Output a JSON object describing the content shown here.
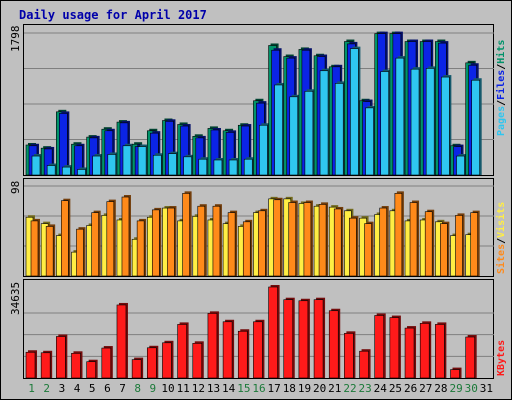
{
  "chart_data": {
    "type": "bar",
    "title": "Daily usage for April 2017",
    "colors": {
      "pages": "#2fc6f0",
      "files": "#0b24e6",
      "hits": "#00936a",
      "visits": "#ffee44",
      "sites": "#ff8a1a",
      "kbytes": "#ff1a1a",
      "weekend": "#1c7a3a",
      "weekday": "#000000",
      "panel": "#c0c0c0",
      "title": "#0000aa",
      "frame": "#000000"
    },
    "categories": [
      "1",
      "2",
      "3",
      "4",
      "5",
      "6",
      "7",
      "8",
      "9",
      "10",
      "11",
      "12",
      "13",
      "14",
      "15",
      "16",
      "17",
      "18",
      "19",
      "20",
      "21",
      "22",
      "23",
      "24",
      "25",
      "26",
      "27",
      "28",
      "29",
      "30",
      "31"
    ],
    "weekend_days": [
      "1",
      "2",
      "8",
      "9",
      "15",
      "16",
      "22",
      "23",
      "29",
      "30"
    ],
    "panels": [
      {
        "name": "hits-panel",
        "max_label": "1798",
        "ylim": [
          0,
          1798
        ],
        "right_labels": [
          {
            "text": "Pages",
            "color_key": "pages"
          },
          {
            "text": "Files",
            "color_key": "files"
          },
          {
            "text": "Hits",
            "color_key": "hits"
          }
        ],
        "series": [
          {
            "name": "Hits",
            "color_key": "hits",
            "values": [
              380,
              340,
              800,
              390,
              480,
              580,
              670,
              390,
              560,
              690,
              640,
              490,
              590,
              560,
              630,
              940,
              1640,
              1500,
              1590,
              1510,
              1370,
              1690,
              940,
              1790,
              1790,
              1690,
              1690,
              1690,
              370,
              1420,
              0
            ]
          },
          {
            "name": "Files",
            "color_key": "files",
            "values": [
              370,
              330,
              780,
              370,
              470,
              560,
              660,
              360,
              530,
              680,
              620,
              470,
              570,
              540,
              620,
              910,
              1580,
              1480,
              1580,
              1500,
              1370,
              1660,
              930,
              1790,
              1790,
              1690,
              1690,
              1670,
              360,
              1390,
              0
            ]
          },
          {
            "name": "Pages",
            "color_key": "pages",
            "values": [
              240,
              120,
              100,
              70,
              240,
              260,
              370,
              360,
              250,
              270,
              230,
              200,
              190,
              190,
              200,
              630,
              1140,
              990,
              1060,
              1320,
              1160,
              1600,
              850,
              1310,
              1480,
              1340,
              1350,
              1240,
              240,
              1200,
              0
            ]
          }
        ]
      },
      {
        "name": "visits-panel",
        "max_label": "98",
        "ylim": [
          0,
          98
        ],
        "right_labels": [
          {
            "text": "Sites",
            "color_key": "sites"
          },
          {
            "text": "Visits",
            "color_key": "visits"
          }
        ],
        "series": [
          {
            "name": "Visits",
            "color_key": "visits",
            "values": [
              64,
              57,
              44,
              26,
              55,
              66,
              61,
              40,
              64,
              74,
              60,
              65,
              61,
              57,
              54,
              69,
              84,
              84,
              79,
              76,
              75,
              71,
              63,
              67,
              71,
              60,
              61,
              59,
              44,
              45,
              0
            ]
          },
          {
            "name": "Sites",
            "color_key": "sites",
            "values": [
              60,
              54,
              82,
              51,
              69,
              81,
              86,
              60,
              72,
              74,
              90,
              76,
              76,
              69,
              59,
              71,
              83,
              80,
              80,
              78,
              73,
              63,
              57,
              74,
              90,
              80,
              70,
              57,
              66,
              69,
              0
            ]
          }
        ]
      },
      {
        "name": "kbytes-panel",
        "max_label": "34635",
        "ylim": [
          0,
          34635
        ],
        "right_labels": [
          {
            "text": "KBytes",
            "color_key": "kbytes"
          }
        ],
        "series": [
          {
            "name": "KBytes",
            "color_key": "kbytes",
            "values": [
              9800,
              9600,
              15800,
              9400,
              6200,
              11400,
              27800,
              7000,
              11500,
              13400,
              20400,
              13200,
              24600,
              21400,
              17800,
              21400,
              34635,
              29800,
              29400,
              29800,
              25600,
              17000,
              10200,
              23800,
              23000,
              19000,
              20800,
              20400,
              3200,
              15600,
              0
            ]
          }
        ]
      }
    ]
  }
}
